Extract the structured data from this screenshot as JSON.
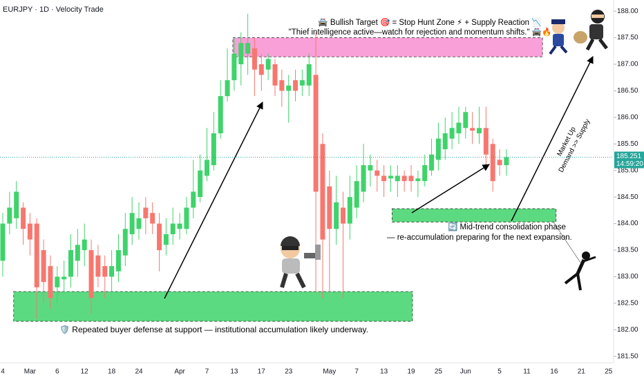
{
  "chart_data": {
    "type": "candlestick",
    "title": "EURJPY · 1D · Velocity Trade",
    "categories": [
      "4",
      null,
      null,
      null,
      "Mar",
      null,
      null,
      null,
      "6",
      null,
      null,
      null,
      "12",
      null,
      null,
      null,
      "18",
      null,
      null,
      null,
      "24",
      null,
      null,
      null,
      null,
      null,
      "Apr",
      null,
      null,
      null,
      "7",
      null,
      null,
      null,
      "13",
      null,
      null,
      null,
      "17",
      null,
      null,
      null,
      "23",
      null,
      null,
      null,
      null,
      null,
      "May",
      null,
      null,
      null,
      "7",
      null,
      null,
      null,
      "13",
      null,
      null,
      null,
      "19",
      null,
      null,
      null,
      "25",
      null,
      null,
      null,
      "Jun",
      null,
      null,
      null,
      null,
      "5",
      null,
      null,
      null,
      "11",
      null,
      null,
      null,
      "16",
      null,
      null,
      null,
      "21",
      null,
      null,
      null,
      "25"
    ],
    "open": [
      183.3,
      184.0,
      184.1,
      184.3,
      184.0,
      184.0,
      183.5,
      183.2,
      182.8,
      182.95,
      183.0,
      183.3,
      183.5,
      183.5,
      183.4,
      183.2,
      183.0,
      183.1,
      183.4,
      183.8,
      183.9,
      184.3,
      184.2,
      184.0,
      183.6,
      183.8,
      183.9,
      183.9,
      184.3,
      184.5,
      184.9,
      185.1,
      185.7,
      186.4,
      186.7,
      187.0,
      187.2,
      187.3,
      187.0,
      186.9,
      187.0,
      186.7,
      186.5,
      186.7,
      186.6,
      186.6,
      186.8,
      185.5,
      184.7,
      183.9,
      184.3,
      184.0,
      184.3,
      184.6,
      185.0,
      185.0,
      184.9,
      184.85,
      184.8,
      184.9,
      184.9,
      184.8,
      184.8,
      185.0,
      185.2,
      185.4,
      185.6,
      185.7,
      185.8,
      185.8,
      185.7,
      185.8,
      185.5,
      185.2,
      185.1,
      null,
      null,
      null,
      null,
      null,
      null,
      null,
      null,
      null,
      null,
      null,
      null,
      null,
      null,
      null
    ],
    "high": [
      184.2,
      184.6,
      184.8,
      184.4,
      184.2,
      184.1,
      183.7,
      183.4,
      183.2,
      183.3,
      183.8,
      183.9,
      184.0,
      183.7,
      183.6,
      183.4,
      183.5,
      183.8,
      184.2,
      184.5,
      184.4,
      184.5,
      184.4,
      184.2,
      184.1,
      184.3,
      184.2,
      184.5,
      185.2,
      185.3,
      185.8,
      186.1,
      186.7,
      187.3,
      187.5,
      187.6,
      187.95,
      187.5,
      187.2,
      187.2,
      187.1,
      186.9,
      186.8,
      186.9,
      186.9,
      187.2,
      187.6,
      185.7,
      185.0,
      184.9,
      184.6,
      184.9,
      185.1,
      185.5,
      185.3,
      185.2,
      185.1,
      185.1,
      185.1,
      185.0,
      185.1,
      185.0,
      185.3,
      185.6,
      185.9,
      186.0,
      186.1,
      186.2,
      186.2,
      186.1,
      186.2,
      186.2,
      185.6,
      185.4,
      185.4,
      null,
      null,
      null,
      null,
      null,
      null,
      null,
      null,
      null,
      null,
      null,
      null,
      null,
      null,
      null
    ],
    "low": [
      183.0,
      183.8,
      183.9,
      183.6,
      183.4,
      182.2,
      182.5,
      182.4,
      182.5,
      182.7,
      182.8,
      183.0,
      183.2,
      182.3,
      182.8,
      182.6,
      182.7,
      182.9,
      183.2,
      183.6,
      183.7,
      183.8,
      183.8,
      183.1,
      183.4,
      183.6,
      183.7,
      183.8,
      184.1,
      184.4,
      184.8,
      185.0,
      185.6,
      186.3,
      186.5,
      186.6,
      186.8,
      186.4,
      186.5,
      186.7,
      186.4,
      186.2,
      185.9,
      186.3,
      186.4,
      186.4,
      182.7,
      182.6,
      182.7,
      183.6,
      182.6,
      183.7,
      184.1,
      184.4,
      184.7,
      184.6,
      184.5,
      184.6,
      184.5,
      184.6,
      184.6,
      184.5,
      184.7,
      184.9,
      185.0,
      185.2,
      185.4,
      185.5,
      185.6,
      185.5,
      185.5,
      185.1,
      184.6,
      184.9,
      184.9,
      null,
      null,
      null,
      null,
      null,
      null,
      null,
      null,
      null,
      null,
      null,
      null,
      null,
      null,
      null
    ],
    "close": [
      184.0,
      184.3,
      184.6,
      183.9,
      183.7,
      182.8,
      182.9,
      182.6,
      183.0,
      183.0,
      183.5,
      183.6,
      183.7,
      182.6,
      183.0,
      183.0,
      183.2,
      183.5,
      183.9,
      184.2,
      184.1,
      184.1,
      184.0,
      183.5,
      183.8,
      184.0,
      184.0,
      184.3,
      184.6,
      185.0,
      185.2,
      185.7,
      186.4,
      186.7,
      187.2,
      187.4,
      187.4,
      186.9,
      186.8,
      187.1,
      186.6,
      186.5,
      186.6,
      186.5,
      186.7,
      187.0,
      184.6,
      183.7,
      183.9,
      184.4,
      184.0,
      184.5,
      184.8,
      185.1,
      185.1,
      184.9,
      184.8,
      184.9,
      184.9,
      184.8,
      184.8,
      184.85,
      185.1,
      185.3,
      185.6,
      185.7,
      185.8,
      185.9,
      186.1,
      185.75,
      185.8,
      185.3,
      184.8,
      185.1,
      185.25,
      null,
      null,
      null,
      null,
      null,
      null,
      null,
      null,
      null,
      null,
      null,
      null,
      null,
      null,
      null
    ],
    "up_color": "#3fd36b",
    "down_color": "#f7776f",
    "ylim": [
      181.38,
      188.21
    ],
    "yticks": [
      {
        "value": 181.5,
        "label": "181.50"
      },
      {
        "value": 182,
        "label": "182.00"
      },
      {
        "value": 182.5,
        "label": "182.50"
      },
      {
        "value": 183,
        "label": "183.00"
      },
      {
        "value": 183.5,
        "label": "183.50"
      },
      {
        "value": 184,
        "label": "184.00"
      },
      {
        "value": 184.5,
        "label": "184.50"
      },
      {
        "value": 185,
        "label": "185.00"
      },
      {
        "value": 185.5,
        "label": "185.50"
      },
      {
        "value": 186,
        "label": "186.00"
      },
      {
        "value": 186.5,
        "label": "186.50"
      },
      {
        "value": 187,
        "label": "187.00"
      },
      {
        "value": 187.5,
        "label": "187.50"
      },
      {
        "value": 188,
        "label": "188.00"
      }
    ],
    "zones": [
      {
        "ylim": [
          187.14,
          187.5
        ],
        "x_range": [
          33.8,
          79.3
        ],
        "color": "#f78fd0"
      },
      {
        "ylim": [
          184.03,
          184.28
        ],
        "x_range": [
          57.2,
          81.3
        ],
        "color": "#3fd36b"
      },
      {
        "ylim": [
          182.16,
          182.72
        ],
        "x_range": [
          1.6,
          60.2
        ],
        "color": "#3fd36b"
      }
    ],
    "last_price": {
      "value": 185.251,
      "label": "185.251"
    },
    "countdown": "14:59:20",
    "annotations": {
      "target_line1": "🚔 Bullish Target 🎯 = Stop Hunt Zone ⚡ + Supply Reaction 📉",
      "target_line2": "\"Thief intelligence active—watch for rejection and momentum shifts.\" 🚔🔥",
      "mid_line1": "🔄 Mid-trend consolidation phase",
      "mid_line2": "— re-accumulation preparing for the next expansion.",
      "support": "🛡️ Repeated buyer defense at support — institutional accumulation likely underway.",
      "diag_line1": "Market Up",
      "diag_line2": "Demand >> Supply"
    }
  }
}
